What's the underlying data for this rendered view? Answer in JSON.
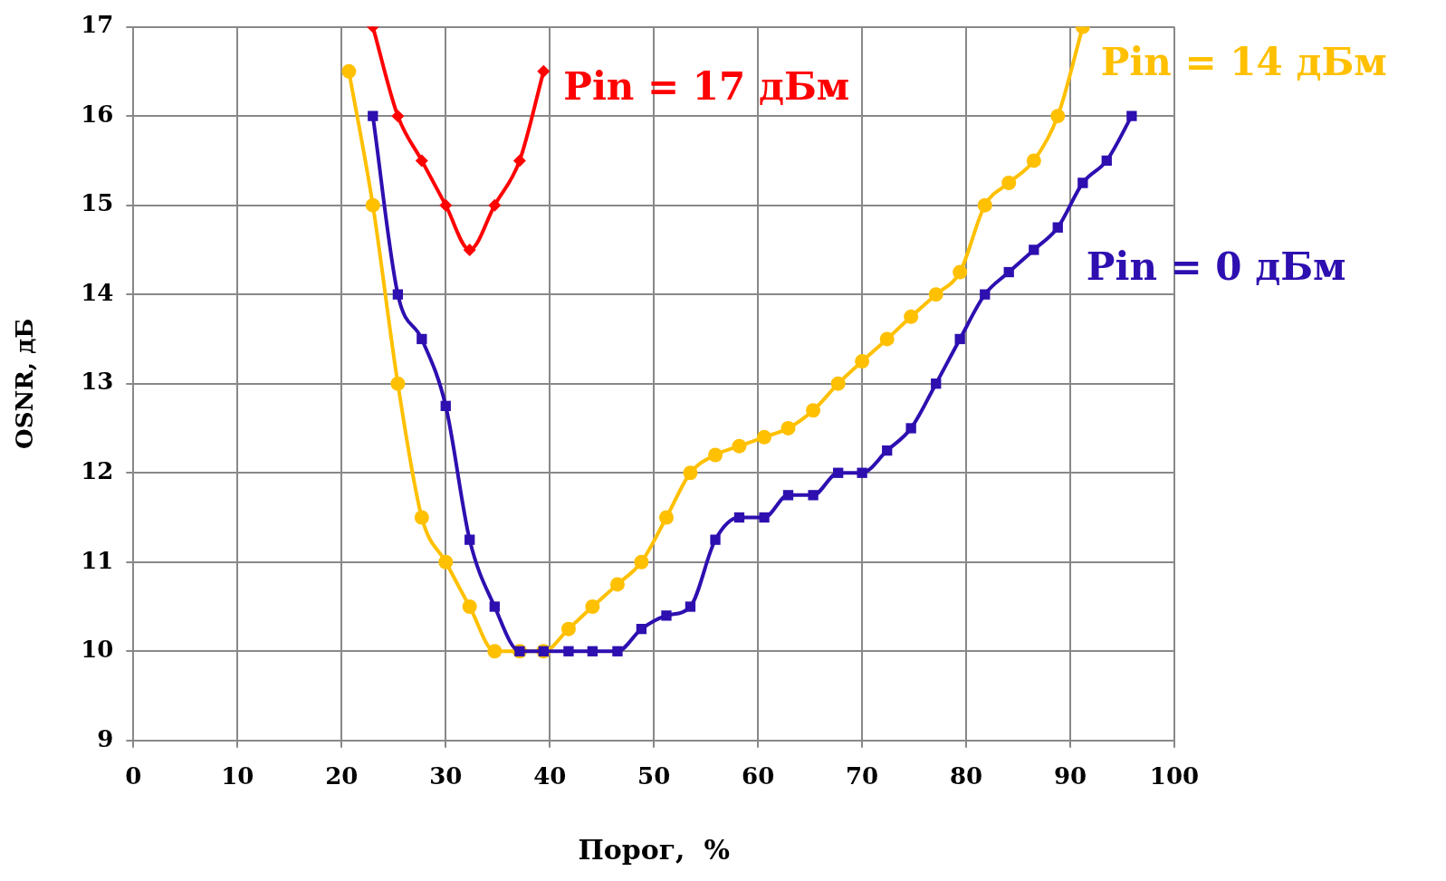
{
  "chart_data": {
    "type": "line",
    "xlabel": "Порог,  %",
    "ylabel": "OSNR, дБ",
    "xlim": [
      0,
      100
    ],
    "xticks": [
      0,
      10,
      20,
      30,
      40,
      50,
      60,
      70,
      80,
      90,
      100
    ],
    "ylim": [
      9,
      17
    ],
    "yticks": [
      9,
      10,
      11,
      12,
      13,
      14,
      15,
      16,
      17
    ],
    "grid": true,
    "legend": false,
    "line_style": "solid",
    "series": [
      {
        "name": "Pin = 17 дБм",
        "color": "#ff0000",
        "marker": "diamond",
        "x": [
          23.0,
          25.4,
          27.7,
          30.0,
          32.3,
          34.7,
          37.1,
          39.4
        ],
        "values": [
          17,
          16,
          15.5,
          15,
          14.5,
          15,
          15.5,
          16.5
        ]
      },
      {
        "name": "Pin = 14 дБм",
        "color": "#ffc000",
        "marker": "circle",
        "x": [
          20.7,
          23.0,
          25.4,
          27.7,
          30.0,
          32.3,
          34.7,
          37.1,
          39.4,
          41.8,
          44.1,
          46.5,
          48.8,
          51.2,
          53.5,
          55.9,
          58.2,
          60.6,
          62.9,
          65.3,
          67.7,
          70.0,
          72.4,
          74.7,
          77.1,
          79.4,
          81.8,
          84.1,
          86.5,
          88.8,
          91.2
        ],
        "values": [
          16.5,
          15,
          13,
          11.5,
          11,
          10.5,
          10,
          10,
          10,
          10.25,
          10.5,
          10.75,
          11,
          11.5,
          12,
          12.2,
          12.3,
          12.4,
          12.5,
          12.7,
          13,
          13.25,
          13.5,
          13.75,
          14,
          14.25,
          15,
          15.25,
          15.5,
          16,
          17
        ]
      },
      {
        "name": "Pin = 0 дБм",
        "color": "#2e0fb0",
        "marker": "square",
        "x": [
          23.0,
          25.4,
          27.7,
          30.0,
          32.3,
          34.7,
          37.1,
          39.4,
          41.8,
          44.1,
          46.5,
          48.8,
          51.2,
          53.5,
          55.9,
          58.2,
          60.6,
          62.9,
          65.3,
          67.7,
          70.0,
          72.4,
          74.7,
          77.1,
          79.4,
          81.8,
          84.1,
          86.5,
          88.8,
          91.2,
          93.5,
          95.9
        ],
        "values": [
          16,
          14,
          13.5,
          12.75,
          11.25,
          10.5,
          10,
          10,
          10,
          10,
          10,
          10.25,
          10.4,
          10.5,
          11.25,
          11.5,
          11.5,
          11.75,
          11.75,
          12,
          12,
          12.25,
          12.5,
          13,
          13.5,
          14,
          14.25,
          14.5,
          14.75,
          15.25,
          15.5,
          16
        ]
      }
    ]
  }
}
